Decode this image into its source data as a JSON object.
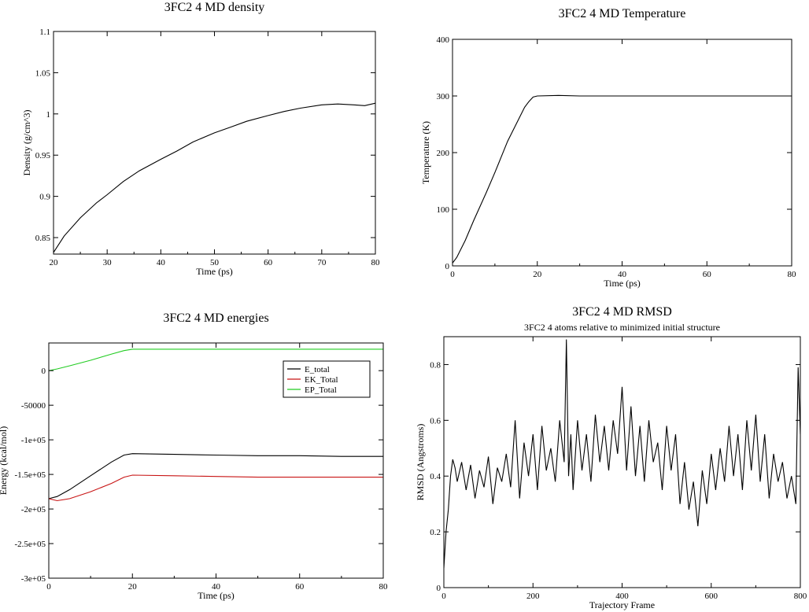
{
  "chart_data": [
    {
      "id": "density",
      "type": "line",
      "title": "3FC2 4 MD density",
      "subtitle": "",
      "xlabel": "Time (ps)",
      "ylabel": "Density (g/cm^3)",
      "xlim": [
        20,
        80
      ],
      "ylim": [
        0.83,
        1.1
      ],
      "xticks": [
        20,
        30,
        40,
        50,
        60,
        70,
        80
      ],
      "xtick_labels": [
        "20",
        "30",
        "40",
        "50",
        "60",
        "70",
        "80"
      ],
      "yticks": [
        0.85,
        0.9,
        0.95,
        1.0,
        1.05,
        1.1
      ],
      "ytick_labels": [
        "0.85",
        "0.9",
        "0.95",
        "1",
        "1.05",
        "1.1"
      ],
      "grid": false,
      "series": [
        {
          "color": "#000000",
          "x": [
            20,
            22,
            25,
            28,
            30,
            33,
            36,
            40,
            43,
            46,
            50,
            53,
            56,
            60,
            63,
            66,
            70,
            73,
            76,
            78,
            80
          ],
          "y": [
            0.832,
            0.852,
            0.874,
            0.892,
            0.902,
            0.918,
            0.931,
            0.945,
            0.955,
            0.966,
            0.977,
            0.984,
            0.991,
            0.998,
            1.003,
            1.007,
            1.011,
            1.012,
            1.011,
            1.01,
            1.013
          ]
        }
      ]
    },
    {
      "id": "temperature",
      "type": "line",
      "title": "3FC2 4 MD Temperature",
      "subtitle": "",
      "xlabel": "Time (ps)",
      "ylabel": "Temperature (K)",
      "xlim": [
        0,
        80
      ],
      "ylim": [
        0,
        400
      ],
      "xticks": [
        0,
        20,
        40,
        60,
        80
      ],
      "xtick_labels": [
        "0",
        "20",
        "40",
        "60",
        "80"
      ],
      "yticks": [
        0,
        100,
        200,
        300,
        400
      ],
      "ytick_labels": [
        "0",
        "100",
        "200",
        "300",
        "400"
      ],
      "grid": false,
      "series": [
        {
          "color": "#000000",
          "x": [
            0,
            1,
            3,
            5,
            8,
            10,
            13,
            15,
            17,
            18,
            19,
            20,
            25,
            30,
            35,
            40,
            45,
            50,
            55,
            60,
            65,
            70,
            75,
            80
          ],
          "y": [
            5,
            15,
            45,
            80,
            130,
            165,
            220,
            250,
            280,
            290,
            298,
            300,
            301,
            300,
            300,
            300,
            300,
            300,
            300,
            300,
            300,
            300,
            300,
            300
          ]
        }
      ]
    },
    {
      "id": "energies",
      "type": "line",
      "title": "3FC2 4 MD energies",
      "subtitle": "",
      "xlabel": "Time (ps)",
      "ylabel": "Energy (kcal/mol)",
      "xlim": [
        0,
        80
      ],
      "ylim": [
        -300000,
        40000
      ],
      "xticks": [
        0,
        20,
        40,
        60,
        80
      ],
      "xtick_labels": [
        "0",
        "20",
        "40",
        "60",
        "80"
      ],
      "yticks": [
        0,
        -50000,
        -100000,
        -150000,
        -200000,
        -250000,
        -300000
      ],
      "ytick_labels": [
        "0",
        "-50000",
        "-1e+05",
        "-1.5e+05",
        "-2e+05",
        "-2.5e+05",
        "-3e+05"
      ],
      "grid": false,
      "legend_position": "top-right",
      "series": [
        {
          "name": "E_total",
          "color": "#000000",
          "x": [
            0,
            2,
            5,
            10,
            15,
            18,
            20,
            30,
            40,
            50,
            60,
            70,
            80
          ],
          "y": [
            -185000,
            -182000,
            -172000,
            -152000,
            -132000,
            -122000,
            -120000,
            -121000,
            -122000,
            -123000,
            -123000,
            -124000,
            -124000
          ]
        },
        {
          "name": "EK_Total",
          "color": "#c81414",
          "x": [
            0,
            2,
            5,
            10,
            15,
            18,
            20,
            30,
            40,
            50,
            60,
            70,
            80
          ],
          "y": [
            -185000,
            -188000,
            -185000,
            -175000,
            -163000,
            -154000,
            -151000,
            -152000,
            -153000,
            -154000,
            -154000,
            -154000,
            -154000
          ]
        },
        {
          "name": "EP_Total",
          "color": "#22cc22",
          "x": [
            0,
            2,
            5,
            10,
            15,
            18,
            20,
            30,
            40,
            50,
            60,
            70,
            80
          ],
          "y": [
            0,
            2500,
            7000,
            15000,
            24000,
            29000,
            31000,
            31000,
            31000,
            31000,
            31000,
            31000,
            31000
          ]
        }
      ]
    },
    {
      "id": "rmsd",
      "type": "line",
      "title": "3FC2 4 MD RMSD",
      "subtitle": "3FC2 4 atoms relative to minimized initial structure",
      "xlabel": "Trajectory Frame",
      "ylabel": "RMSD (Angstroms)",
      "xlim": [
        0,
        800
      ],
      "ylim": [
        0,
        0.9
      ],
      "xticks": [
        0,
        200,
        400,
        600,
        800
      ],
      "xtick_labels": [
        "0",
        "200",
        "400",
        "600",
        "800"
      ],
      "yticks": [
        0,
        0.2,
        0.4,
        0.6,
        0.8
      ],
      "ytick_labels": [
        "0",
        "0.2",
        "0.4",
        "0.6",
        "0.8"
      ],
      "grid": false,
      "series": [
        {
          "color": "#000000",
          "x": [
            0,
            5,
            10,
            15,
            20,
            25,
            30,
            40,
            50,
            60,
            70,
            80,
            90,
            100,
            110,
            120,
            130,
            140,
            150,
            160,
            170,
            180,
            190,
            200,
            210,
            220,
            230,
            240,
            250,
            260,
            270,
            275,
            280,
            285,
            290,
            300,
            310,
            320,
            330,
            340,
            350,
            360,
            370,
            380,
            390,
            400,
            410,
            420,
            430,
            440,
            450,
            460,
            470,
            480,
            490,
            500,
            510,
            520,
            530,
            540,
            550,
            560,
            570,
            580,
            590,
            600,
            610,
            620,
            630,
            640,
            650,
            660,
            670,
            680,
            690,
            700,
            710,
            720,
            730,
            740,
            750,
            760,
            770,
            780,
            790,
            795,
            800,
            805,
            810
          ],
          "y": [
            0.07,
            0.2,
            0.28,
            0.4,
            0.46,
            0.43,
            0.38,
            0.45,
            0.35,
            0.44,
            0.32,
            0.42,
            0.36,
            0.47,
            0.3,
            0.43,
            0.38,
            0.48,
            0.36,
            0.6,
            0.32,
            0.52,
            0.4,
            0.55,
            0.35,
            0.58,
            0.42,
            0.5,
            0.38,
            0.6,
            0.45,
            0.89,
            0.4,
            0.55,
            0.35,
            0.6,
            0.42,
            0.55,
            0.38,
            0.62,
            0.45,
            0.58,
            0.42,
            0.6,
            0.48,
            0.72,
            0.42,
            0.65,
            0.4,
            0.58,
            0.38,
            0.6,
            0.45,
            0.52,
            0.35,
            0.58,
            0.42,
            0.55,
            0.3,
            0.45,
            0.28,
            0.38,
            0.22,
            0.42,
            0.3,
            0.48,
            0.35,
            0.5,
            0.38,
            0.58,
            0.4,
            0.55,
            0.35,
            0.6,
            0.42,
            0.62,
            0.38,
            0.55,
            0.32,
            0.48,
            0.38,
            0.45,
            0.32,
            0.4,
            0.3,
            0.79,
            0.55,
            0.7,
            0.45
          ]
        }
      ]
    }
  ]
}
